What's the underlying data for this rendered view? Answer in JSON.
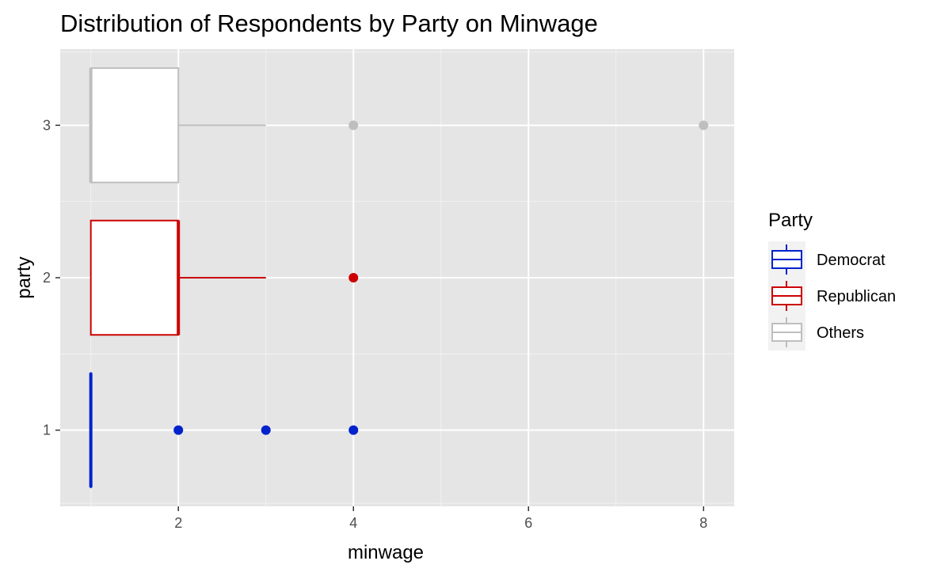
{
  "chart_data": {
    "type": "boxplot",
    "title": "Distribution of Respondents by Party on Minwage",
    "xlabel": "minwage",
    "ylabel": "party",
    "xlim": [
      0.65,
      8.35
    ],
    "ylim": [
      0.5,
      3.5
    ],
    "x_ticks": [
      2,
      4,
      6,
      8
    ],
    "x_minor": [
      1,
      3,
      5,
      7
    ],
    "y_ticks": [
      1,
      2,
      3
    ],
    "grid": true,
    "legend_title": "Party",
    "legend_position": "right",
    "series": [
      {
        "name": "Democrat",
        "party": 1,
        "color": "#0022CC",
        "q1": 1,
        "median": 1,
        "q3": 1,
        "whisker_low": 1,
        "whisker_high": 1,
        "outliers": [
          2,
          3,
          4
        ]
      },
      {
        "name": "Republican",
        "party": 2,
        "color": "#CC0000",
        "q1": 1,
        "median": 2,
        "q3": 2,
        "whisker_low": 1,
        "whisker_high": 3,
        "outliers": [
          4
        ]
      },
      {
        "name": "Others",
        "party": 3,
        "color": "#BEBEBE",
        "q1": 1,
        "median": 1,
        "q3": 2,
        "whisker_low": 1,
        "whisker_high": 3,
        "outliers": [
          4,
          8
        ]
      }
    ]
  }
}
